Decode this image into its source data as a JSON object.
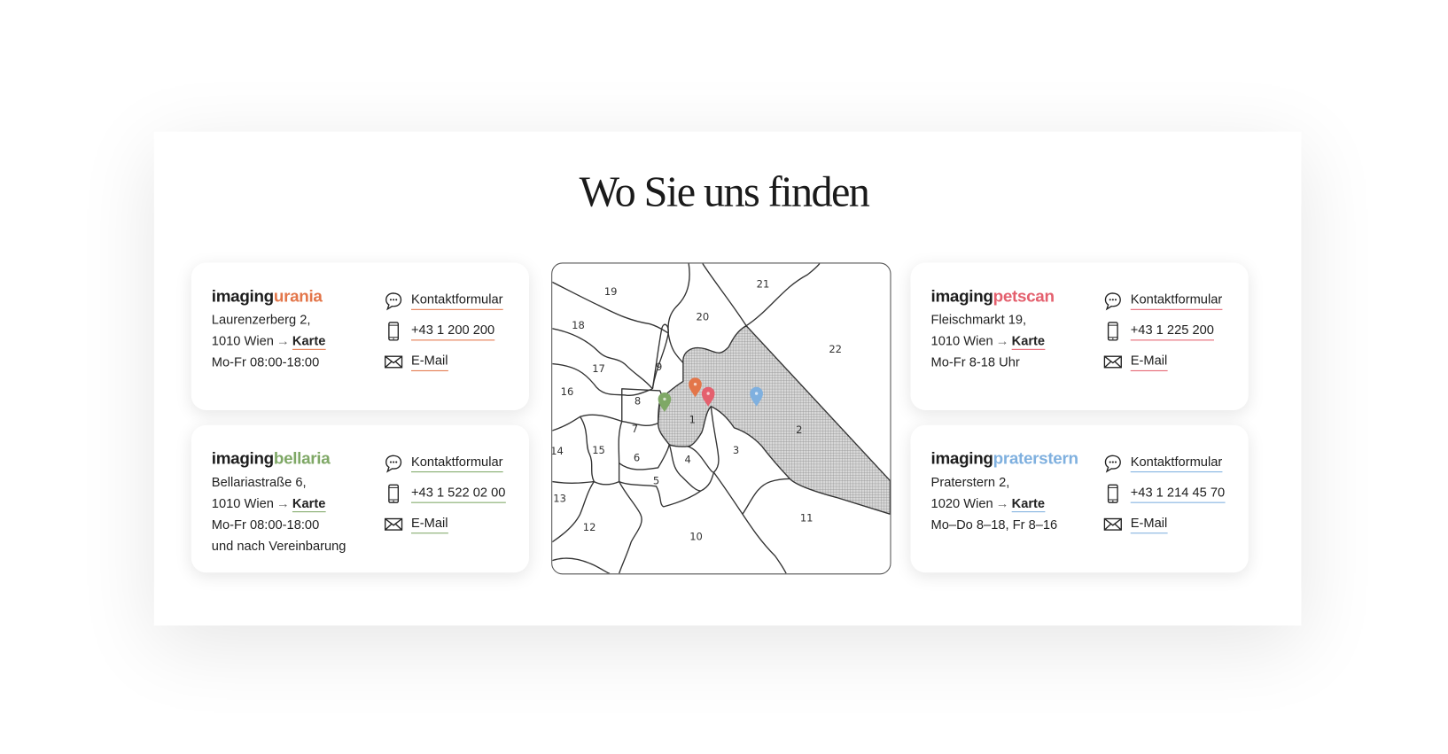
{
  "title": "Wo Sie uns finden",
  "colors": {
    "urania": "#e3764a",
    "bellaria": "#7fa866",
    "petscan": "#e4606e",
    "praterstern": "#7fb0df"
  },
  "locations": [
    {
      "brand_prefix": "imaging",
      "brand_suffix": "urania",
      "color": "#e3764a",
      "street": "Laurenzerberg 2,",
      "city": "1010 Wien",
      "map_link": "Karte",
      "hours": [
        "Mo-Fr 08:00-18:00"
      ],
      "contact": "Kontaktformular",
      "phone": "+43 1 200 200",
      "email": "E-Mail"
    },
    {
      "brand_prefix": "imaging",
      "brand_suffix": "bellaria",
      "color": "#7fa866",
      "street": "Bellariastraße 6,",
      "city": "1010 Wien",
      "map_link": "Karte",
      "hours": [
        "Mo-Fr 08:00-18:00",
        "und nach Vereinbarung"
      ],
      "contact": "Kontaktformular",
      "phone": "+43 1 522 02 00",
      "email": "E-Mail"
    },
    {
      "brand_prefix": "imaging",
      "brand_suffix": "petscan",
      "color": "#e4606e",
      "street": "Fleischmarkt 19,",
      "city": "1010 Wien",
      "map_link": "Karte",
      "hours": [
        "Mo-Fr 8-18 Uhr"
      ],
      "contact": "Kontaktformular",
      "phone": "+43 1 225 200",
      "email": "E-Mail"
    },
    {
      "brand_prefix": "imaging",
      "brand_suffix": "praterstern",
      "color": "#7fb0df",
      "street": "Praterstern 2,",
      "city": "1020 Wien",
      "map_link": "Karte",
      "hours": [
        "Mo–Do 8–18, Fr 8–16"
      ],
      "contact": "Kontaktformular",
      "phone": "+43 1 214 45 70",
      "email": "E-Mail"
    }
  ],
  "map": {
    "district_labels": [
      "1",
      "2",
      "3",
      "4",
      "5",
      "6",
      "7",
      "8",
      "9",
      "10",
      "11",
      "12",
      "13",
      "14",
      "15",
      "16",
      "17",
      "18",
      "19",
      "20",
      "21",
      "22"
    ],
    "highlighted_districts": [
      "1",
      "2"
    ]
  }
}
